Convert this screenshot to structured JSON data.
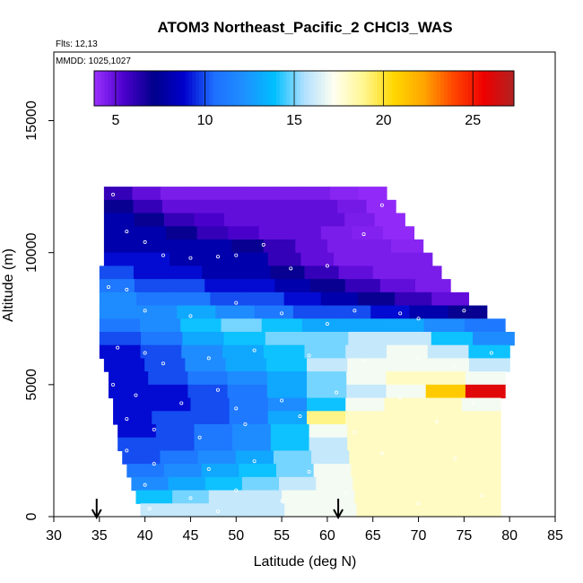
{
  "chart_data": {
    "type": "heatmap",
    "title": "ATOM3 Northeast_Pacific_2 CHCl3_WAS",
    "flights_note": "Flts: 12,13",
    "dates_note": "MMDD: 1025,1027",
    "xlabel": "Latitude (deg N)",
    "ylabel": "Altitude (m)",
    "xlim": [
      30,
      85
    ],
    "ylim": [
      0,
      17600
    ],
    "x_ticks": [
      30,
      35,
      40,
      45,
      50,
      55,
      60,
      65,
      70,
      75,
      80,
      85
    ],
    "y_ticks": [
      0,
      5000,
      10000,
      15000
    ],
    "colorbar": {
      "range": [
        3.8,
        27.3
      ],
      "ticks": [
        5,
        10,
        15,
        20,
        25
      ],
      "colors": [
        "#9b30ff",
        "#4b00cc",
        "#00008b",
        "#0000cd",
        "#1e6fff",
        "#1e90ff",
        "#00bfff",
        "#b0e0ff",
        "#fffff0",
        "#fff68f",
        "#ffd700",
        "#ffa500",
        "#ff4500",
        "#ee0000",
        "#b22222"
      ]
    },
    "arrows_latitude": [
      34.7,
      61.2
    ],
    "bands": [
      {
        "alt": [
          12000,
          12500
        ],
        "lat": [
          35.5,
          66.5
        ],
        "values": [
          6,
          5,
          4.5,
          4.5,
          4.5,
          4.5,
          4.5,
          4.5,
          4.2,
          4
        ]
      },
      {
        "alt": [
          11500,
          12000
        ],
        "lat": [
          35.5,
          67.5
        ],
        "values": [
          7,
          6,
          5,
          5,
          5,
          5,
          5,
          5,
          4.6,
          4
        ]
      },
      {
        "alt": [
          11000,
          11500
        ],
        "lat": [
          35.5,
          68.5
        ],
        "values": [
          8,
          7,
          6,
          5.5,
          5,
          5,
          5,
          5,
          4.5,
          4
        ]
      },
      {
        "alt": [
          10500,
          11000
        ],
        "lat": [
          35.5,
          69.5
        ],
        "values": [
          8,
          8,
          7,
          6,
          5.5,
          5,
          5,
          4.5,
          4.3,
          4
        ]
      },
      {
        "alt": [
          10000,
          10500
        ],
        "lat": [
          35.5,
          70.5
        ],
        "values": [
          8,
          8,
          8,
          8,
          7,
          6,
          5,
          4.5,
          4.5,
          4.2
        ]
      },
      {
        "alt": [
          9500,
          10000
        ],
        "lat": [
          35.5,
          71.5
        ],
        "values": [
          9,
          9,
          8,
          8,
          8,
          6,
          5,
          4.5,
          4.5,
          4.5
        ]
      },
      {
        "alt": [
          9000,
          9500
        ],
        "lat": [
          35,
          72.5
        ],
        "values": [
          10,
          9,
          9,
          8,
          8,
          7,
          6,
          5,
          4.5,
          4.5
        ]
      },
      {
        "alt": [
          8500,
          9000
        ],
        "lat": [
          35,
          73.5
        ],
        "values": [
          11,
          10,
          10,
          9,
          9,
          8,
          7,
          6,
          5,
          4.5
        ]
      },
      {
        "alt": [
          8000,
          8500
        ],
        "lat": [
          35,
          75.5
        ],
        "values": [
          12,
          11,
          11,
          10,
          10,
          9,
          8,
          7,
          6,
          5
        ]
      },
      {
        "alt": [
          7500,
          8000
        ],
        "lat": [
          35,
          77.5
        ],
        "values": [
          12,
          12,
          13,
          12,
          11,
          10,
          10,
          9,
          8,
          7
        ]
      },
      {
        "alt": [
          7000,
          7500
        ],
        "lat": [
          35,
          79.5
        ],
        "values": [
          11,
          12,
          14,
          15,
          14,
          13,
          13,
          13,
          12,
          11
        ]
      },
      {
        "alt": [
          6500,
          7000
        ],
        "lat": [
          35,
          80.5
        ],
        "values": [
          10,
          11,
          13,
          14,
          15,
          15,
          16,
          16,
          14,
          12
        ]
      },
      {
        "alt": [
          6000,
          6500
        ],
        "lat": [
          35,
          80
        ],
        "values": [
          9,
          10,
          12,
          13,
          14,
          15,
          16,
          17,
          16,
          14
        ]
      },
      {
        "alt": [
          5500,
          6000
        ],
        "lat": [
          35.5,
          80
        ],
        "values": [
          9,
          10,
          12,
          13,
          14,
          16,
          17,
          17,
          17,
          16
        ]
      },
      {
        "alt": [
          5000,
          5500
        ],
        "lat": [
          36,
          79.5
        ],
        "values": [
          9,
          10,
          11,
          12,
          13,
          15,
          17,
          18,
          18,
          17
        ]
      },
      {
        "alt": [
          4500,
          5000
        ],
        "lat": [
          36,
          79.5
        ],
        "values": [
          9,
          9,
          10,
          11,
          13,
          15,
          16,
          17,
          21,
          26
        ]
      },
      {
        "alt": [
          4000,
          4500
        ],
        "lat": [
          36.5,
          79
        ],
        "values": [
          9,
          9,
          10,
          11,
          12,
          14,
          17,
          18,
          18,
          17
        ]
      },
      {
        "alt": [
          3500,
          4000
        ],
        "lat": [
          36.5,
          79
        ],
        "values": [
          9,
          10,
          10,
          11,
          13,
          19,
          18,
          18,
          18,
          18
        ]
      },
      {
        "alt": [
          3000,
          3500
        ],
        "lat": [
          37,
          79
        ],
        "values": [
          9,
          10,
          11,
          12,
          14,
          17,
          18,
          18,
          18,
          18
        ]
      },
      {
        "alt": [
          2500,
          3000
        ],
        "lat": [
          37,
          79
        ],
        "values": [
          10,
          10,
          11,
          12,
          14,
          16,
          18,
          18,
          18,
          18
        ]
      },
      {
        "alt": [
          2000,
          2500
        ],
        "lat": [
          37.5,
          79
        ],
        "values": [
          10,
          11,
          12,
          13,
          15,
          16,
          18,
          18,
          18,
          18
        ]
      },
      {
        "alt": [
          1500,
          2000
        ],
        "lat": [
          38,
          79
        ],
        "values": [
          11,
          12,
          13,
          14,
          15,
          17,
          18,
          18,
          18,
          18
        ]
      },
      {
        "alt": [
          1000,
          1500
        ],
        "lat": [
          38.5,
          79
        ],
        "values": [
          12,
          13,
          14,
          15,
          16,
          17,
          18,
          18,
          18,
          18
        ]
      },
      {
        "alt": [
          500,
          1000
        ],
        "lat": [
          39,
          79
        ],
        "values": [
          14,
          15,
          16,
          16,
          17,
          17,
          18,
          18,
          18,
          18
        ]
      },
      {
        "alt": [
          0,
          500
        ],
        "lat": [
          39.5,
          79
        ],
        "values": [
          16,
          16,
          16,
          16,
          17,
          17,
          18,
          18,
          18,
          18
        ]
      }
    ],
    "sample_points": [
      [
        36.5,
        12200
      ],
      [
        38,
        10800
      ],
      [
        40,
        10400
      ],
      [
        42,
        9900
      ],
      [
        45,
        9800
      ],
      [
        48,
        9850
      ],
      [
        50,
        9900
      ],
      [
        53,
        10300
      ],
      [
        56,
        9400
      ],
      [
        60,
        9500
      ],
      [
        64,
        10700
      ],
      [
        66,
        11800
      ],
      [
        36,
        8700
      ],
      [
        38,
        8600
      ],
      [
        40,
        7800
      ],
      [
        45,
        7600
      ],
      [
        50,
        8100
      ],
      [
        55,
        7700
      ],
      [
        60,
        7300
      ],
      [
        63,
        7800
      ],
      [
        68,
        7700
      ],
      [
        70,
        7500
      ],
      [
        75,
        7800
      ],
      [
        80,
        7400
      ],
      [
        37,
        6400
      ],
      [
        40,
        6200
      ],
      [
        42,
        5800
      ],
      [
        47,
        6000
      ],
      [
        52,
        6300
      ],
      [
        58,
        6100
      ],
      [
        64,
        5900
      ],
      [
        70,
        6000
      ],
      [
        74,
        5700
      ],
      [
        78,
        6200
      ],
      [
        36.5,
        5000
      ],
      [
        39,
        4600
      ],
      [
        44,
        4300
      ],
      [
        48,
        4800
      ],
      [
        50,
        4100
      ],
      [
        55,
        4400
      ],
      [
        61,
        4700
      ],
      [
        68,
        4500
      ],
      [
        76,
        4300
      ],
      [
        38,
        3700
      ],
      [
        41,
        3300
      ],
      [
        46,
        3000
      ],
      [
        51,
        3500
      ],
      [
        57,
        3800
      ],
      [
        63,
        3200
      ],
      [
        72,
        3600
      ],
      [
        38,
        2500
      ],
      [
        41,
        2000
      ],
      [
        47,
        1800
      ],
      [
        52,
        2100
      ],
      [
        58,
        1700
      ],
      [
        66,
        2400
      ],
      [
        74,
        2200
      ],
      [
        40,
        1200
      ],
      [
        45,
        700
      ],
      [
        50,
        1000
      ],
      [
        55,
        600
      ],
      [
        62,
        900
      ],
      [
        70,
        500
      ],
      [
        77,
        800
      ],
      [
        40.5,
        300
      ],
      [
        48,
        200
      ]
    ]
  }
}
